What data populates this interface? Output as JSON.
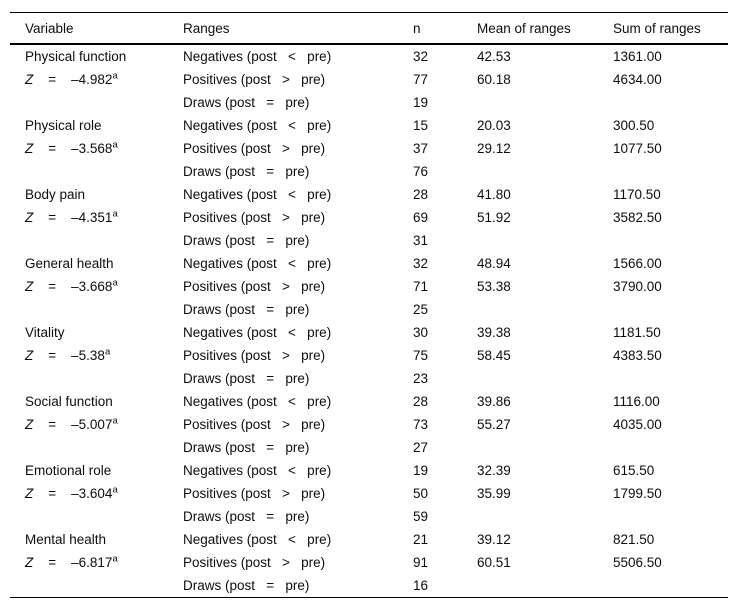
{
  "table": {
    "headers": {
      "variable": "Variable",
      "ranges": "Ranges",
      "n": "n",
      "mean": "Mean of ranges",
      "sum": "Sum of ranges"
    },
    "z_symbol": "Z",
    "z_mid": "    =    ",
    "z_sup": "a",
    "groups": [
      {
        "name": "Physical function",
        "z_value": "–4.982",
        "rows": [
          {
            "range": "Negatives (post   <   pre)",
            "n": "32",
            "mean": "42.53",
            "sum": "1361.00"
          },
          {
            "range": "Positives (post   >   pre)",
            "n": "77",
            "mean": "60.18",
            "sum": "4634.00"
          },
          {
            "range": "Draws (post   =   pre)",
            "n": "19"
          }
        ]
      },
      {
        "name": "Physical role",
        "z_value": "–3.568",
        "rows": [
          {
            "range": "Negatives (post   <   pre)",
            "n": "15",
            "mean": "20.03",
            "sum": "300.50"
          },
          {
            "range": "Positives (post   >   pre)",
            "n": "37",
            "mean": "29.12",
            "sum": "1077.50"
          },
          {
            "range": "Draws (post   =   pre)",
            "n": "76"
          }
        ]
      },
      {
        "name": "Body pain",
        "z_value": "–4.351",
        "rows": [
          {
            "range": "Negatives (post   <   pre)",
            "n": "28",
            "mean": "41.80",
            "sum": "1170.50"
          },
          {
            "range": "Positives (post   >   pre)",
            "n": "69",
            "mean": "51.92",
            "sum": "3582.50"
          },
          {
            "range": "Draws (post   =   pre)",
            "n": "31"
          }
        ]
      },
      {
        "name": "General health",
        "z_value": "–3.668",
        "rows": [
          {
            "range": "Negatives (post   <   pre)",
            "n": "32",
            "mean": "48.94",
            "sum": "1566.00"
          },
          {
            "range": "Positives (post   >   pre)",
            "n": "71",
            "mean": "53.38",
            "sum": "3790.00"
          },
          {
            "range": "Draws (post   =   pre)",
            "n": "25"
          }
        ]
      },
      {
        "name": "Vitality",
        "z_value": "–5.38",
        "rows": [
          {
            "range": "Negatives (post   <   pre)",
            "n": "30",
            "mean": "39.38",
            "sum": "1181.50"
          },
          {
            "range": "Positives (post   >   pre)",
            "n": "75",
            "mean": "58.45",
            "sum": "4383.50"
          },
          {
            "range": "Draws (post   =   pre)",
            "n": "23"
          }
        ]
      },
      {
        "name": "Social function",
        "z_value": "–5.007",
        "rows": [
          {
            "range": "Negatives (post   <   pre)",
            "n": "28",
            "mean": "39.86",
            "sum": "1116.00"
          },
          {
            "range": "Positives (post   >   pre)",
            "n": "73",
            "mean": "55.27",
            "sum": "4035.00"
          },
          {
            "range": "Draws (post   =   pre)",
            "n": "27"
          }
        ]
      },
      {
        "name": "Emotional role",
        "z_value": "–3.604",
        "rows": [
          {
            "range": "Negatives (post   <   pre)",
            "n": "19",
            "mean": "32.39",
            "sum": "615.50"
          },
          {
            "range": "Positives (post   >   pre)",
            "n": "50",
            "mean": "35.99",
            "sum": "1799.50"
          },
          {
            "range": "Draws (post   =   pre)",
            "n": "59"
          }
        ]
      },
      {
        "name": "Mental health",
        "z_value": "–6.817",
        "rows": [
          {
            "range": "Negatives (post   <   pre)",
            "n": "21",
            "mean": "39.12",
            "sum": "821.50"
          },
          {
            "range": "Positives (post   >   pre)",
            "n": "91",
            "mean": "60.51",
            "sum": "5506.50"
          },
          {
            "range": "Draws (post   =   pre)",
            "n": "16"
          }
        ]
      }
    ]
  }
}
